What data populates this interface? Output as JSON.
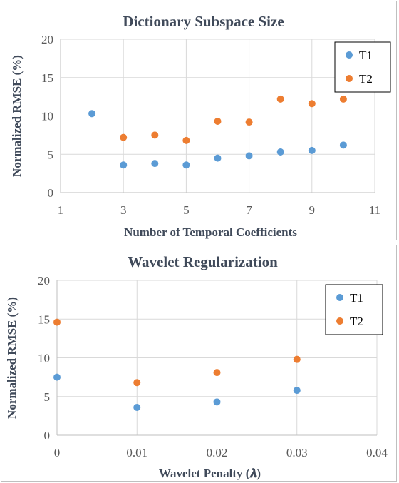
{
  "colors": {
    "T1": "#5b9bd5",
    "T2": "#ed7d31"
  },
  "chart_data": [
    {
      "type": "scatter",
      "title": "Dictionary Subspace Size",
      "xlabel": "Number of Temporal Coefficients",
      "ylabel": "Normalized RMSE (%)",
      "xlim": [
        1,
        11
      ],
      "ylim": [
        0,
        20
      ],
      "xticks": [
        "1",
        "3",
        "5",
        "7",
        "9",
        "11"
      ],
      "yticks": [
        "0",
        "5",
        "10",
        "15",
        "20"
      ],
      "xtick_values": [
        1,
        3,
        5,
        7,
        9,
        11
      ],
      "ytick_values": [
        0,
        5,
        10,
        15,
        20
      ],
      "grid": true,
      "legend": "top-right",
      "series": [
        {
          "name": "T1",
          "x": [
            2,
            3,
            4,
            5,
            6,
            7,
            8,
            9,
            10
          ],
          "y": [
            10.3,
            3.6,
            3.8,
            3.6,
            4.5,
            4.8,
            5.3,
            5.5,
            6.2
          ]
        },
        {
          "name": "T2",
          "x": [
            3,
            4,
            5,
            6,
            7,
            8,
            9,
            10
          ],
          "y": [
            7.2,
            7.5,
            6.8,
            9.3,
            9.2,
            12.2,
            11.6,
            12.2
          ]
        }
      ]
    },
    {
      "type": "scatter",
      "title": "Wavelet Regularization",
      "xlabel": "Wavelet Penalty (𝝀)",
      "ylabel": "Normalized RMSE (%)",
      "xlim": [
        0,
        0.04
      ],
      "ylim": [
        0,
        20
      ],
      "xticks": [
        "0",
        "0.01",
        "0.02",
        "0.03",
        "0.04"
      ],
      "yticks": [
        "0",
        "5",
        "10",
        "15",
        "20"
      ],
      "xtick_values": [
        0,
        0.01,
        0.02,
        0.03,
        0.04
      ],
      "ytick_values": [
        0,
        5,
        10,
        15,
        20
      ],
      "grid": true,
      "legend": "top-right",
      "series": [
        {
          "name": "T1",
          "x": [
            0,
            0.01,
            0.02,
            0.03
          ],
          "y": [
            7.5,
            3.6,
            4.3,
            5.8
          ]
        },
        {
          "name": "T2",
          "x": [
            0,
            0.01,
            0.02,
            0.03
          ],
          "y": [
            14.6,
            6.8,
            8.1,
            9.8
          ]
        }
      ]
    }
  ]
}
